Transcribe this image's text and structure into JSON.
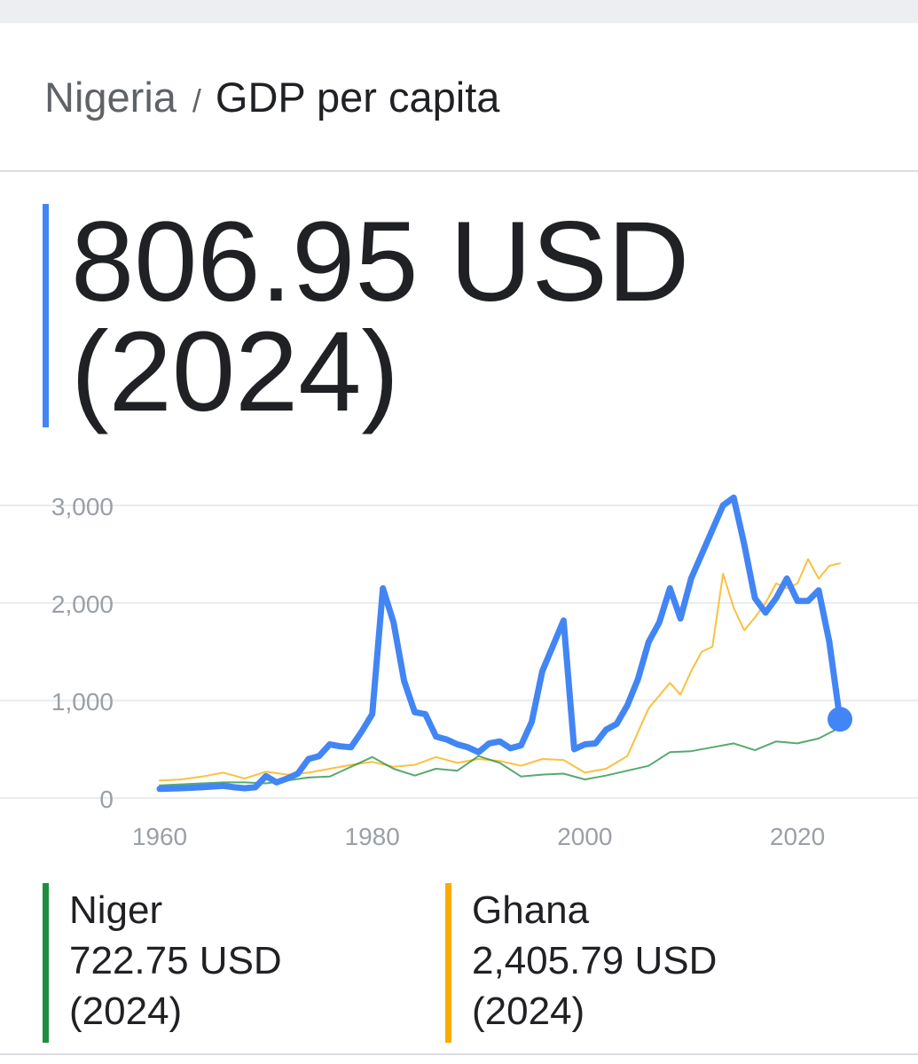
{
  "breadcrumb": {
    "country": "Nigeria",
    "separator": "/",
    "metric": "GDP per capita"
  },
  "headline": {
    "value": "806.95 USD",
    "year": "(2024)",
    "color": "#4285f4"
  },
  "legend": [
    {
      "name": "Niger",
      "value": "722.75 USD",
      "year": "(2024)",
      "color": "#1e8e3e"
    },
    {
      "name": "Ghana",
      "value": "2,405.79 USD",
      "year": "(2024)",
      "color": "#f9ab00"
    }
  ],
  "chart_data": {
    "type": "line",
    "y_ticks": [
      "3,000",
      "2,000",
      "1,000",
      "0"
    ],
    "x_ticks": [
      "1960",
      "1980",
      "2000",
      "2020"
    ],
    "xlim": [
      1960,
      2024
    ],
    "ylim": [
      0,
      3000
    ],
    "grid": true,
    "series": [
      {
        "name": "Nigeria",
        "color": "#4285f4",
        "x": [
          1960,
          1962,
          1964,
          1966,
          1967,
          1968,
          1969,
          1970,
          1971,
          1972,
          1973,
          1974,
          1975,
          1976,
          1977,
          1978,
          1979,
          1980,
          1981,
          1982,
          1983,
          1984,
          1985,
          1986,
          1987,
          1988,
          1989,
          1990,
          1991,
          1992,
          1993,
          1994,
          1995,
          1996,
          1998,
          1999,
          2000,
          2001,
          2002,
          2003,
          2004,
          2005,
          2006,
          2007,
          2008,
          2009,
          2010,
          2011,
          2012,
          2013,
          2014,
          2015,
          2016,
          2017,
          2018,
          2019,
          2020,
          2021,
          2022,
          2023,
          2024
        ],
        "y": [
          93,
          100,
          110,
          125,
          110,
          100,
          110,
          225,
          160,
          200,
          250,
          400,
          430,
          550,
          530,
          520,
          680,
          860,
          2150,
          1800,
          1200,
          880,
          860,
          630,
          600,
          550,
          520,
          470,
          560,
          580,
          510,
          540,
          780,
          1300,
          1820,
          500,
          550,
          560,
          700,
          760,
          950,
          1220,
          1600,
          1800,
          2150,
          1840,
          2250,
          2500,
          2750,
          3000,
          3080,
          2600,
          2050,
          1900,
          2050,
          2250,
          2020,
          2020,
          2130,
          1600,
          807
        ]
      },
      {
        "name": "Ghana",
        "color": "#f9ab00",
        "x": [
          1960,
          1962,
          1964,
          1966,
          1968,
          1970,
          1972,
          1974,
          1976,
          1978,
          1980,
          1982,
          1984,
          1986,
          1988,
          1990,
          1992,
          1994,
          1996,
          1998,
          2000,
          2002,
          2004,
          2006,
          2008,
          2009,
          2010,
          2011,
          2012,
          2013,
          2014,
          2015,
          2016,
          2017,
          2018,
          2019,
          2020,
          2021,
          2022,
          2023,
          2024
        ],
        "y": [
          180,
          190,
          220,
          260,
          200,
          270,
          240,
          260,
          300,
          340,
          370,
          320,
          340,
          420,
          360,
          400,
          380,
          330,
          400,
          390,
          260,
          300,
          430,
          920,
          1180,
          1060,
          1300,
          1500,
          1550,
          2300,
          1950,
          1720,
          1850,
          2000,
          2200,
          2150,
          2200,
          2450,
          2250,
          2380,
          2406
        ]
      },
      {
        "name": "Niger",
        "color": "#1e8e3e",
        "x": [
          1960,
          1962,
          1964,
          1966,
          1968,
          1970,
          1972,
          1974,
          1976,
          1978,
          1980,
          1982,
          1984,
          1986,
          1988,
          1990,
          1992,
          1994,
          1996,
          1998,
          2000,
          2002,
          2004,
          2006,
          2008,
          2010,
          2012,
          2014,
          2016,
          2018,
          2020,
          2022,
          2024
        ],
        "y": [
          130,
          140,
          150,
          160,
          160,
          150,
          180,
          210,
          220,
          320,
          420,
          300,
          230,
          300,
          280,
          430,
          360,
          220,
          240,
          250,
          190,
          230,
          280,
          330,
          470,
          480,
          520,
          560,
          490,
          580,
          560,
          610,
          723
        ]
      }
    ]
  }
}
